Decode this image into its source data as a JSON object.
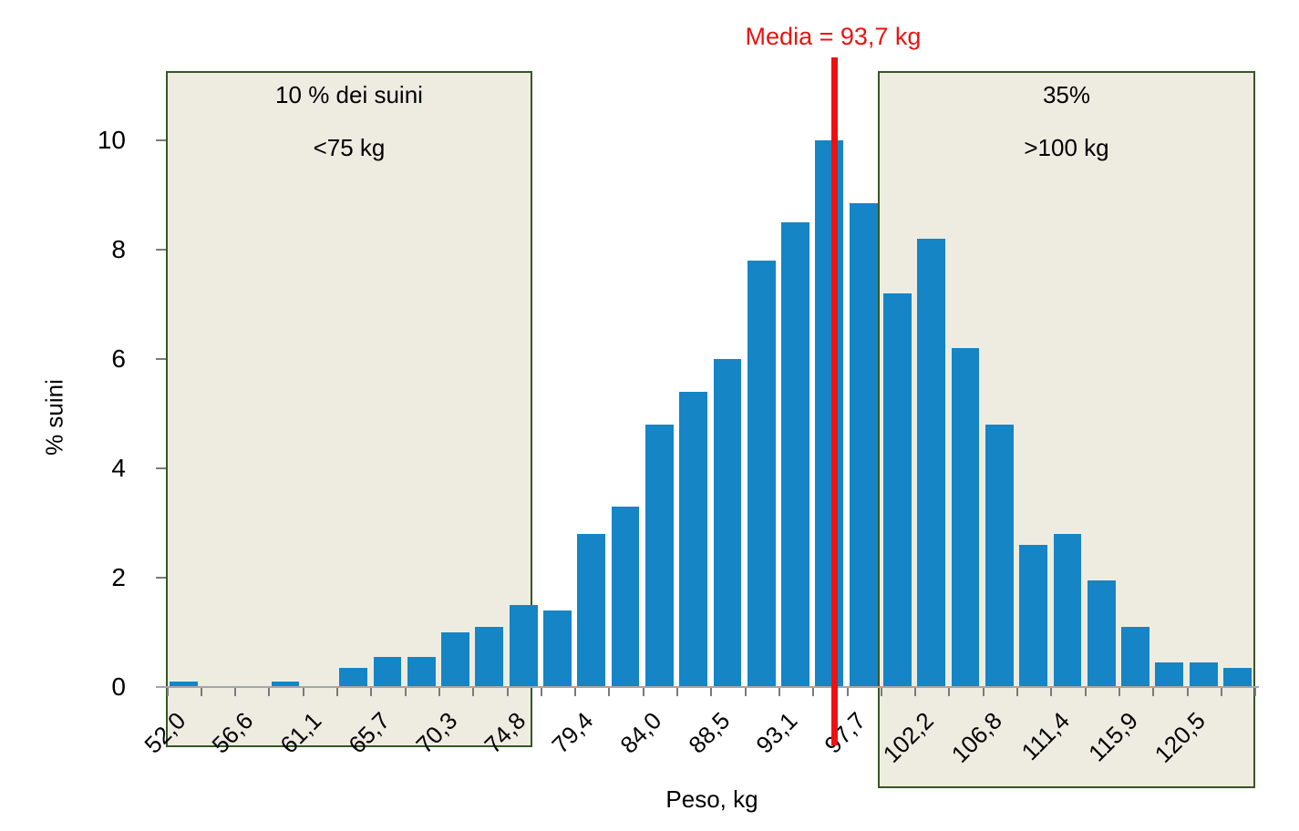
{
  "chart_data": {
    "type": "bar",
    "title": "",
    "xlabel": "Peso, kg",
    "ylabel": "% suini",
    "ylim": [
      0,
      10
    ],
    "y_ticks": [
      0,
      2,
      4,
      6,
      8,
      10
    ],
    "x_tick_labels": [
      "52,0",
      "56,6",
      "61,1",
      "65,7",
      "70,3",
      "74,8",
      "79,4",
      "84,0",
      "88,5",
      "93,1",
      "97,7",
      "102,2",
      "106,8",
      "111,4",
      "115,9",
      "120,5"
    ],
    "bins_per_labeled_tick": 2,
    "values": [
      0.1,
      0,
      0,
      0.1,
      0,
      0.35,
      0.55,
      0.55,
      1.0,
      1.1,
      1.5,
      1.4,
      2.8,
      3.3,
      4.8,
      5.4,
      6.0,
      7.8,
      8.5,
      10.0,
      8.85,
      7.2,
      8.2,
      6.2,
      4.8,
      2.6,
      2.8,
      1.95,
      1.1,
      0.45,
      0.45,
      0.35
    ],
    "grid": false,
    "legend": false,
    "bar_color": "#1585C5",
    "axis_color": "#A6A6A6",
    "annotations": {
      "mean_line": {
        "label": "Media = 93,7 kg",
        "color": "#EC1212"
      },
      "left_region": {
        "line1": "10 % dei suini",
        "line2": "<75 kg",
        "fill": "#EEECE1",
        "border": "#375623"
      },
      "right_region": {
        "line1": "35%",
        "line2": ">100 kg",
        "fill": "#EEECE1",
        "border": "#375623"
      }
    }
  }
}
